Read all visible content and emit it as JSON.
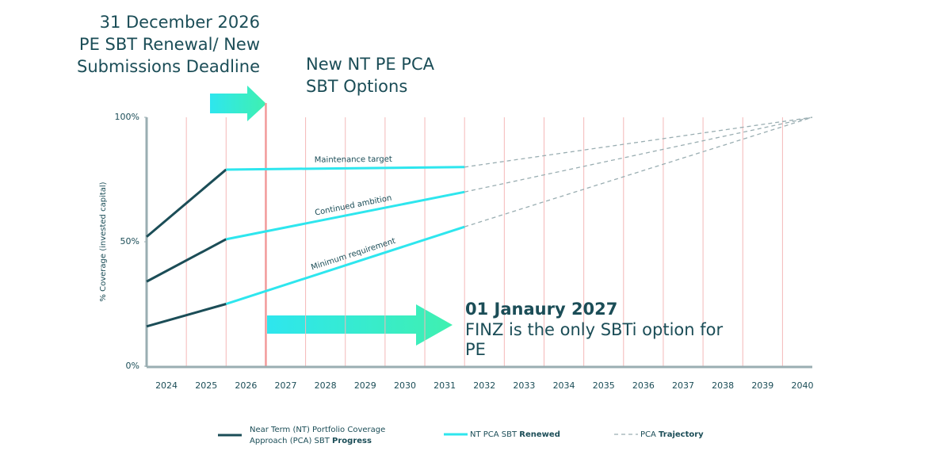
{
  "chart_data": {
    "type": "line",
    "annotations": {
      "deadline": [
        "31 December 2026",
        "PE SBT Renewal/ New",
        "Submissions Deadline"
      ],
      "options": [
        "New NT PE PCA",
        "SBT Options"
      ],
      "finz_date": "01 Janaury 2027",
      "finz": [
        "FINZ is the only SBTi option for",
        "PE"
      ]
    },
    "y_label": "% Coverage (invested capital)",
    "x": [
      2023.5,
      2025.5,
      2031.5,
      2040.25
    ],
    "series": [
      {
        "name": "Maintenance target",
        "values": [
          52,
          79,
          80,
          100
        ]
      },
      {
        "name": "Continued ambition",
        "values": [
          34,
          51,
          70,
          100
        ]
      },
      {
        "name": "Minimum requirement",
        "values": [
          16,
          25,
          56,
          100
        ]
      }
    ],
    "phases": [
      {
        "label": "Near Term (NT) Portfolio Coverage Approach (PCA) SBT",
        "label_bold": "Progress",
        "color": "#1b4d57",
        "dashed": false
      },
      {
        "label": "NT PCA SBT",
        "label_bold": "Renewed",
        "color": "#2ee6ee",
        "dashed": false
      },
      {
        "label": "PCA",
        "label_bold": "Trajectory",
        "color": "#9aaeb2",
        "dashed": true
      }
    ],
    "deadline_x": 2026.5,
    "xlim": [
      2023.5,
      2040.25
    ],
    "xticks": [
      2024,
      2025,
      2026,
      2027,
      2028,
      2029,
      2030,
      2031,
      2032,
      2033,
      2034,
      2035,
      2036,
      2037,
      2038,
      2039,
      2040
    ],
    "ylim": [
      0,
      100
    ],
    "yticks": [
      {
        "value": 0,
        "label": "0%"
      },
      {
        "value": 50,
        "label": "50%"
      },
      {
        "value": 100,
        "label": "100%"
      }
    ],
    "grid": true
  }
}
